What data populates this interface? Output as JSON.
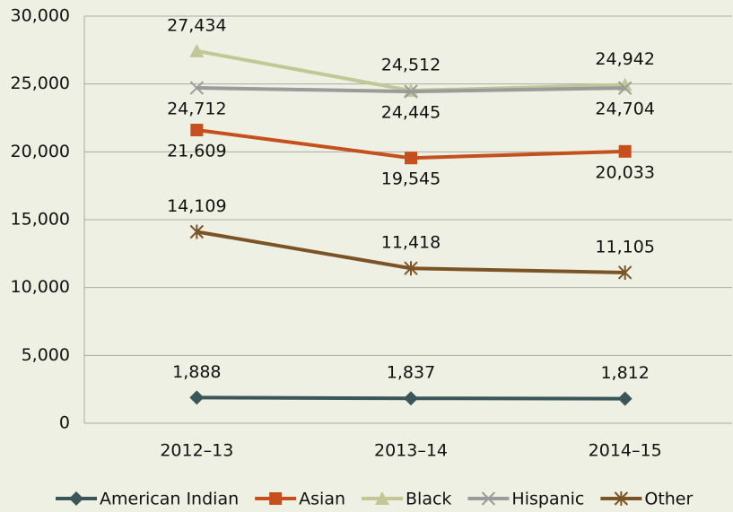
{
  "chart_data": {
    "type": "line",
    "categories": [
      "2012–13",
      "2013–14",
      "2014–15"
    ],
    "series": [
      {
        "name": "American Indian",
        "color": "#3b5658",
        "marker": "diamond",
        "values": [
          1888,
          1837,
          1812
        ],
        "value_labels": [
          "1,888",
          "1,837",
          "1,812"
        ]
      },
      {
        "name": "Asian",
        "color": "#c5501e",
        "marker": "square",
        "values": [
          21609,
          19545,
          20033
        ],
        "value_labels": [
          "21,609",
          "19,545",
          "20,033"
        ]
      },
      {
        "name": "Black",
        "color": "#c3c796",
        "marker": "triangle",
        "values": [
          27434,
          24512,
          24942
        ],
        "value_labels": [
          "27,434",
          "24,512",
          "24,942"
        ]
      },
      {
        "name": "Hispanic",
        "color": "#9b9b9b",
        "marker": "x",
        "values": [
          24712,
          24445,
          24704
        ],
        "value_labels": [
          "24,712",
          "24,445",
          "24,704"
        ]
      },
      {
        "name": "Other",
        "color": "#7b5426",
        "marker": "asterisk",
        "values": [
          14109,
          11418,
          11105
        ],
        "value_labels": [
          "14,109",
          "11,418",
          "11,105"
        ]
      }
    ],
    "ylim": [
      0,
      30000
    ],
    "yticks": [
      0,
      {
        "value": 5000,
        "label": "5,000"
      },
      {
        "value": 10000,
        "label": "10,000"
      },
      {
        "value": 15000,
        "label": "15,000"
      },
      {
        "value": 20000,
        "label": "20,000"
      },
      {
        "value": 25000,
        "label": "25,000"
      },
      {
        "value": 30000,
        "label": "30,000"
      }
    ],
    "grid": true,
    "legend": "bottom"
  }
}
